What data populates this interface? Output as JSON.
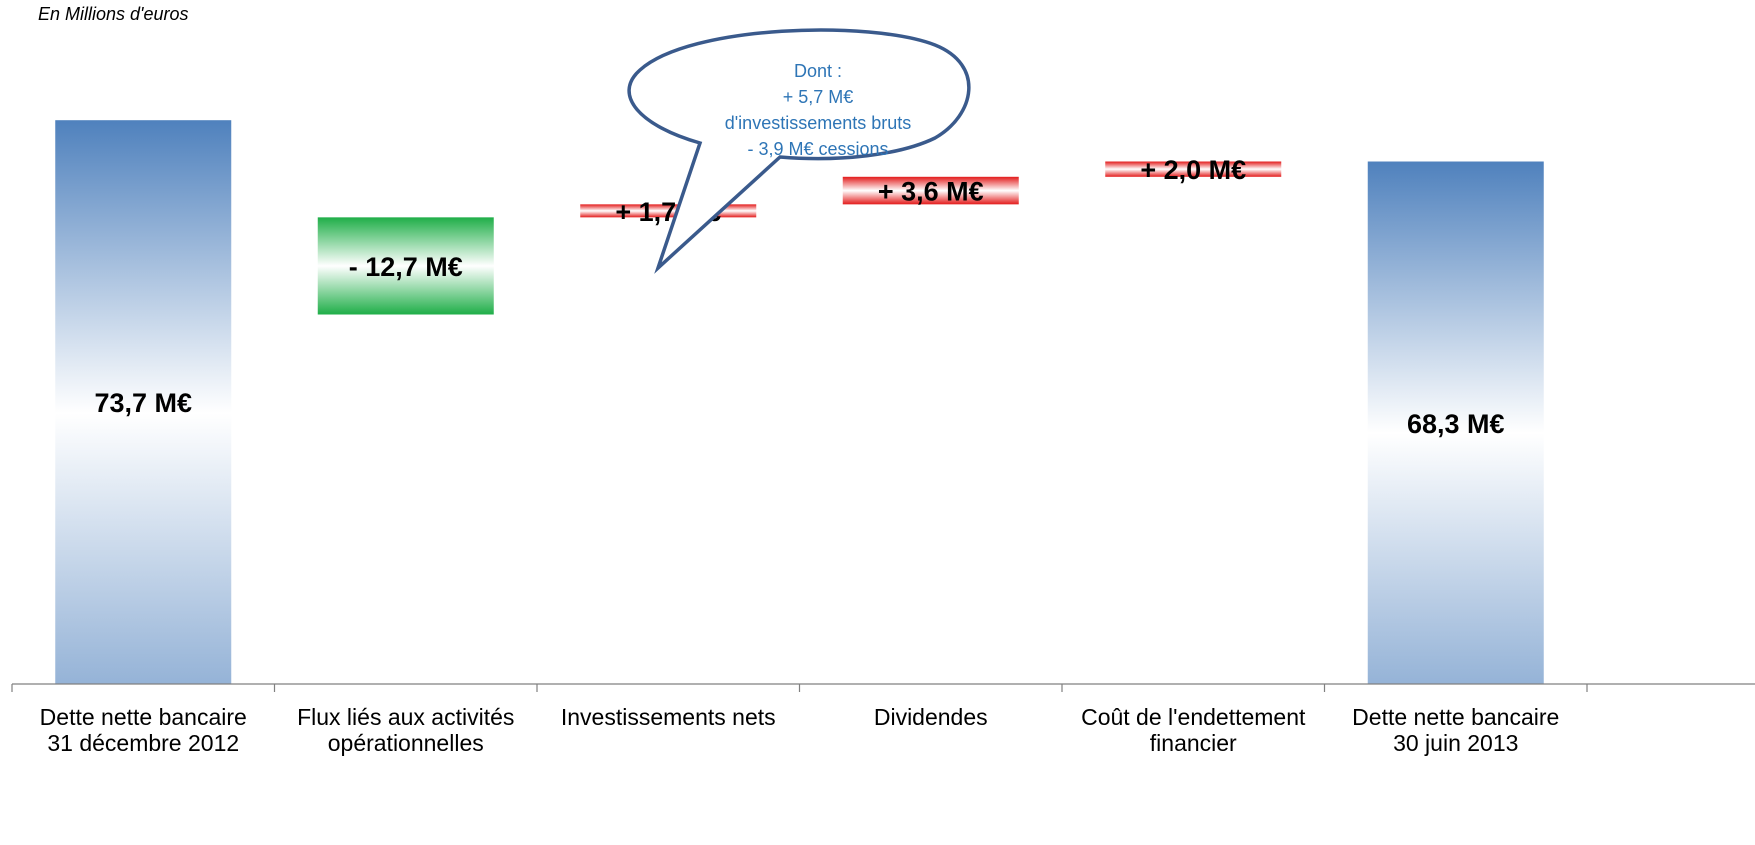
{
  "unit_note": "En Millions d'euros",
  "callout": {
    "lines": [
      "Dont :",
      "+ 5,7 M€",
      "d'investissements bruts",
      "- 3,9 M€ cessions"
    ]
  },
  "colors": {
    "total": "#4f81bd",
    "decrease": "#1fae48",
    "increase": "#e31b1b",
    "callout_border": "#3a5a8c",
    "callout_text": "#2e75b6",
    "axis": "#808080"
  },
  "chart_data": {
    "type": "bar",
    "subtype": "waterfall",
    "ylabel": "En Millions d'euros",
    "categories": [
      [
        "Dette nette bancaire",
        "31 décembre 2012"
      ],
      [
        "Flux liés aux activités",
        "opérationnelles"
      ],
      [
        "Investissements nets"
      ],
      [
        "Dividendes"
      ],
      [
        "Coût de l'endettement",
        "financier"
      ],
      [
        "Dette nette bancaire",
        "30 juin 2013"
      ]
    ],
    "bars": [
      {
        "kind": "total",
        "base": 0,
        "value": 73.7,
        "label": "73,7 M€"
      },
      {
        "kind": "decrease",
        "base": 61.0,
        "value": -12.7,
        "label": "- 12,7 M€"
      },
      {
        "kind": "increase",
        "base": 61.0,
        "value": 1.7,
        "label": "+ 1,7 M€"
      },
      {
        "kind": "increase",
        "base": 62.7,
        "value": 3.6,
        "label": "+ 3,6 M€"
      },
      {
        "kind": "increase",
        "base": 66.3,
        "value": 2.0,
        "label": "+ 2,0 M€"
      },
      {
        "kind": "total",
        "base": 0,
        "value": 68.3,
        "label": "68,3 M€"
      }
    ]
  }
}
